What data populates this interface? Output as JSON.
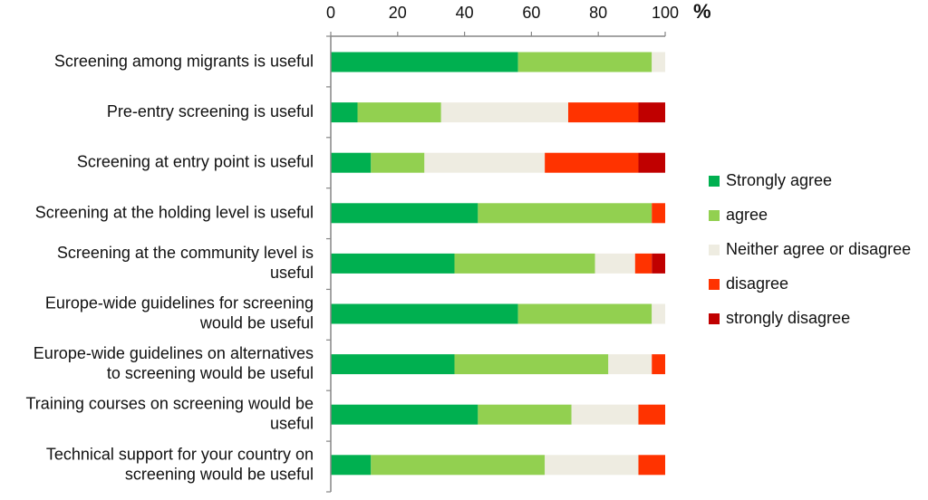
{
  "chart_data": {
    "type": "bar",
    "orientation": "horizontal",
    "stacked": true,
    "title": "",
    "xlabel": "",
    "ylabel": "",
    "unit_label": "%",
    "xlim": [
      0,
      100
    ],
    "x_ticks": [
      0,
      20,
      40,
      60,
      80,
      100
    ],
    "grid": false,
    "legend_position": "right",
    "categories": [
      "Screening among migrants is useful",
      "Pre-entry screening is useful",
      "Screening at entry point is useful",
      "Screening at the holding level is useful",
      "Screening at the community level is useful",
      "Europe-wide guidelines for screening would be useful",
      "Europe-wide guidelines on alternatives to screening would be useful",
      "Training courses on screening would be useful",
      "Technical support for your country on screening would be useful"
    ],
    "category_lines": [
      [
        "Screening among migrants is useful"
      ],
      [
        "Pre-entry screening is useful"
      ],
      [
        "Screening at entry point is useful"
      ],
      [
        "Screening at the holding level is useful"
      ],
      [
        "Screening at the community level is",
        "useful"
      ],
      [
        "Europe-wide guidelines for screening",
        "would be useful"
      ],
      [
        "Europe-wide guidelines on alternatives",
        "to screening would be useful"
      ],
      [
        "Training courses on screening would be",
        "useful"
      ],
      [
        "Technical support for your country on",
        "screening would be useful"
      ]
    ],
    "series": [
      {
        "name": "Strongly agree",
        "color": "#00b050",
        "values": [
          56,
          8,
          12,
          44,
          37,
          56,
          37,
          44,
          12
        ]
      },
      {
        "name": "agree",
        "color": "#92d050",
        "values": [
          40,
          25,
          16,
          52,
          42,
          40,
          46,
          28,
          52
        ]
      },
      {
        "name": "Neither agree or disagree",
        "color": "#eeece1",
        "values": [
          4,
          38,
          36,
          0,
          12,
          4,
          13,
          20,
          28
        ]
      },
      {
        "name": "disagree",
        "color": "#ff3300",
        "values": [
          0,
          21,
          28,
          4,
          5,
          0,
          4,
          8,
          8
        ]
      },
      {
        "name": "strongly disagree",
        "color": "#c00000",
        "values": [
          0,
          8,
          8,
          0,
          4,
          0,
          0,
          0,
          0
        ]
      }
    ]
  }
}
